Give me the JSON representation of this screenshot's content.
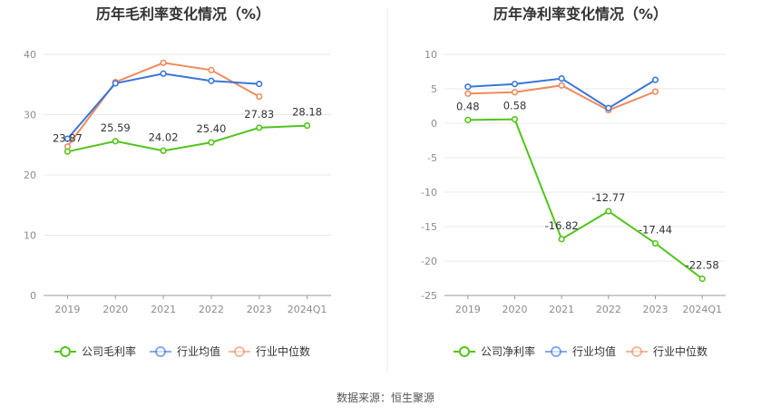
{
  "source_text": "数据来源：恒生聚源",
  "chart_data": [
    {
      "type": "line",
      "title": "历年毛利率变化情况（%）",
      "categories": [
        "2019",
        "2020",
        "2021",
        "2022",
        "2023",
        "2024Q1"
      ],
      "ylim": [
        0,
        40
      ],
      "yticks": [
        0,
        10,
        20,
        30,
        40
      ],
      "grid": true,
      "legend_position": "bottom",
      "series": [
        {
          "name": "公司毛利率",
          "color": "#52c41a",
          "values": [
            23.87,
            25.59,
            24.02,
            25.4,
            27.83,
            28.18
          ],
          "labels": [
            "23.87",
            "25.59",
            "24.02",
            "25.40",
            "27.83",
            "28.18"
          ]
        },
        {
          "name": "行业均值",
          "color": "#3a75d9",
          "values": [
            26.0,
            35.2,
            36.8,
            35.6,
            35.1,
            null
          ],
          "labels": null
        },
        {
          "name": "行业中位数",
          "color": "#f08a5d",
          "values": [
            24.7,
            35.4,
            38.6,
            37.4,
            33.0,
            null
          ],
          "labels": null
        }
      ]
    },
    {
      "type": "line",
      "title": "历年净利率变化情况（%）",
      "categories": [
        "2019",
        "2020",
        "2021",
        "2022",
        "2023",
        "2024Q1"
      ],
      "ylim": [
        -25,
        10
      ],
      "yticks": [
        10,
        5,
        0,
        -5,
        -10,
        -15,
        -20,
        -25
      ],
      "grid": true,
      "legend_position": "bottom",
      "series": [
        {
          "name": "公司净利率",
          "color": "#52c41a",
          "values": [
            0.48,
            0.58,
            -16.82,
            -12.77,
            -17.44,
            -22.58
          ],
          "labels": [
            "0.48",
            "0.58",
            "-16.82",
            "-12.77",
            "-17.44",
            "-22.58"
          ]
        },
        {
          "name": "行业均值",
          "color": "#3a75d9",
          "values": [
            5.3,
            5.7,
            6.5,
            2.2,
            6.3,
            null
          ],
          "labels": null
        },
        {
          "name": "行业中位数",
          "color": "#f08a5d",
          "values": [
            4.3,
            4.5,
            5.5,
            1.9,
            4.6,
            null
          ],
          "labels": null
        }
      ]
    }
  ]
}
